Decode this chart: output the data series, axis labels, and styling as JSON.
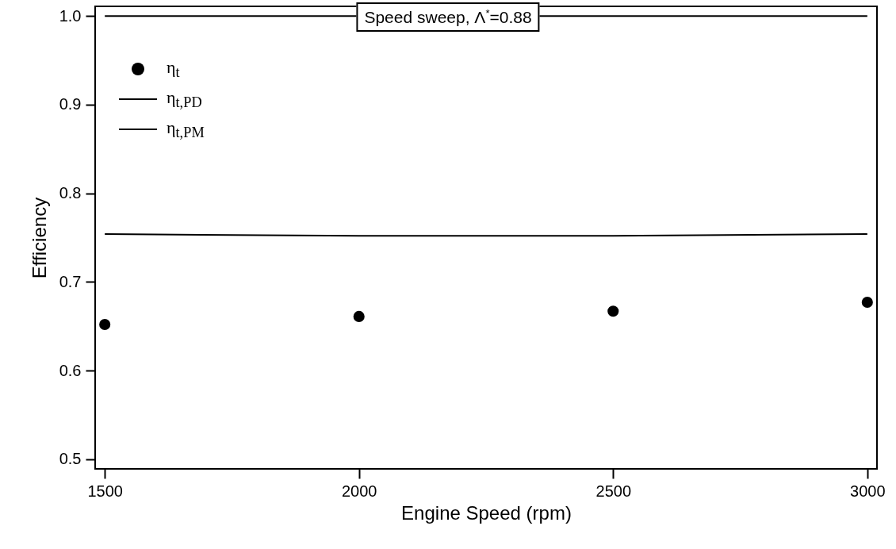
{
  "chart_data": {
    "type": "scatter",
    "xlabel": "Engine Speed (rpm)",
    "ylabel": "Efficiency",
    "annotations": [
      "Speed sweep, Λ$^{*}$=0.88"
    ],
    "xlim": [
      1481,
      3019
    ],
    "ylim": [
      0.489,
      1.011
    ],
    "xticks": [
      1500,
      2000,
      2500,
      3000
    ],
    "yticks": [
      0.5,
      0.6,
      0.7,
      0.8,
      0.9,
      {
        "value": 1,
        "label": "1.0"
      }
    ],
    "grid": false,
    "legend": "top left",
    "series": [
      {
        "name": "η$_{t}$",
        "marker": "circle",
        "color": "#000000",
        "x": [
          1500,
          2000,
          2500,
          3000
        ],
        "values": [
          0.652,
          0.661,
          0.667,
          0.677
        ]
      },
      {
        "name": "η$_{t,PD}$",
        "type": "line",
        "color": "#000000",
        "x": [
          1500,
          3000
        ],
        "values": [
          1.0,
          1.0
        ]
      },
      {
        "name": "η$_{t,PM}$",
        "type": "line",
        "color": "#000000",
        "x": [
          1500,
          2000,
          2500,
          3000
        ],
        "values": [
          0.754,
          0.752,
          0.752,
          0.754
        ]
      }
    ]
  }
}
